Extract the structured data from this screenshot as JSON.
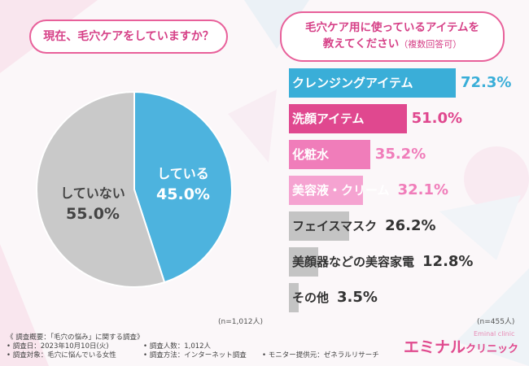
{
  "left": {
    "question": "現在、毛穴ケアをしていますか？",
    "n_note": "(n=1,012人)"
  },
  "right": {
    "question_line1": "毛穴ケア用に使っているアイテムを",
    "question_line2": "教えてください",
    "question_sub": "（複数回答可）",
    "n_note": "(n=455人)"
  },
  "chart_data": [
    {
      "type": "pie",
      "title": "現在、毛穴ケアをしていますか？",
      "slices": [
        {
          "label": "している",
          "value": 45.0,
          "value_label": "45.0%",
          "color": "#4db3de"
        },
        {
          "label": "していない",
          "value": 55.0,
          "value_label": "55.0%",
          "color": "#c9c9c9"
        }
      ]
    },
    {
      "type": "bar",
      "orientation": "horizontal",
      "title": "毛穴ケア用に使っているアイテムを教えてください（複数回答可）",
      "categories": [
        "クレンジングアイテム",
        "洗顔アイテム",
        "化粧水",
        "美容液・クリーム",
        "フェイスマスク",
        "美顔器などの美容家電",
        "その他"
      ],
      "values": [
        72.3,
        51.0,
        35.2,
        32.1,
        26.2,
        12.8,
        3.5
      ],
      "value_labels": [
        "72.3%",
        "51.0%",
        "35.2%",
        "32.1%",
        "26.2%",
        "12.8%",
        "3.5%"
      ],
      "bar_colors": [
        "#3aaed8",
        "#e0488f",
        "#f07dba",
        "#f5a3d1",
        "#c4c4c4",
        "#c4c4c4",
        "#c4c4c4"
      ],
      "label_colors": [
        "#ffffff",
        "#ffffff",
        "#ffffff",
        "#ffffff",
        "#333333",
        "#333333",
        "#333333"
      ],
      "value_colors": [
        "#3aaed8",
        "#e0488f",
        "#f07dba",
        "#f07dba",
        "#333333",
        "#333333",
        "#333333"
      ]
    }
  ],
  "footer": {
    "line1": "《 調査概要：「毛穴の悩み」に関する調査》",
    "line2a": "• 調査日：2023年10月10日(火)",
    "line2b": "• 調査人数：1,012人",
    "line3a": "• 調査対象：毛穴に悩んでいる女性",
    "line3b": "• 調査方法：インターネット調査",
    "line3c": "• モニター提供元：ゼネラルリサーチ"
  },
  "logo": {
    "main": "エミナル",
    "clinic": "クリニック",
    "en": "Eminal clinic"
  }
}
